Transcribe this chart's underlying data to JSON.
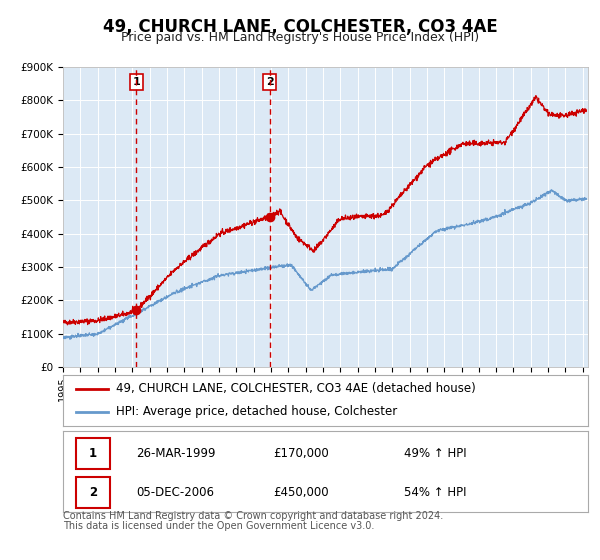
{
  "title": "49, CHURCH LANE, COLCHESTER, CO3 4AE",
  "subtitle": "Price paid vs. HM Land Registry's House Price Index (HPI)",
  "ylim": [
    0,
    900000
  ],
  "yticks": [
    0,
    100000,
    200000,
    300000,
    400000,
    500000,
    600000,
    700000,
    800000,
    900000
  ],
  "ytick_labels": [
    "£0",
    "£100K",
    "£200K",
    "£300K",
    "£400K",
    "£500K",
    "£600K",
    "£700K",
    "£800K",
    "£900K"
  ],
  "xlim_start": 1995.0,
  "xlim_end": 2025.3,
  "background_color": "#ffffff",
  "plot_bg_color": "#dce9f5",
  "grid_color": "#ffffff",
  "red_line_color": "#cc0000",
  "blue_line_color": "#6699cc",
  "vline_color": "#cc0000",
  "marker1_x": 1999.23,
  "marker1_y": 170000,
  "marker2_x": 2006.92,
  "marker2_y": 450000,
  "annotation1_label": "1",
  "annotation2_label": "2",
  "legend_line1": "49, CHURCH LANE, COLCHESTER, CO3 4AE (detached house)",
  "legend_line2": "HPI: Average price, detached house, Colchester",
  "table_row1": [
    "1",
    "26-MAR-1999",
    "£170,000",
    "49% ↑ HPI"
  ],
  "table_row2": [
    "2",
    "05-DEC-2006",
    "£450,000",
    "54% ↑ HPI"
  ],
  "footer_line1": "Contains HM Land Registry data © Crown copyright and database right 2024.",
  "footer_line2": "This data is licensed under the Open Government Licence v3.0.",
  "title_fontsize": 12,
  "subtitle_fontsize": 9,
  "tick_fontsize": 7.5,
  "legend_fontsize": 8.5,
  "table_fontsize": 8.5,
  "footer_fontsize": 7
}
